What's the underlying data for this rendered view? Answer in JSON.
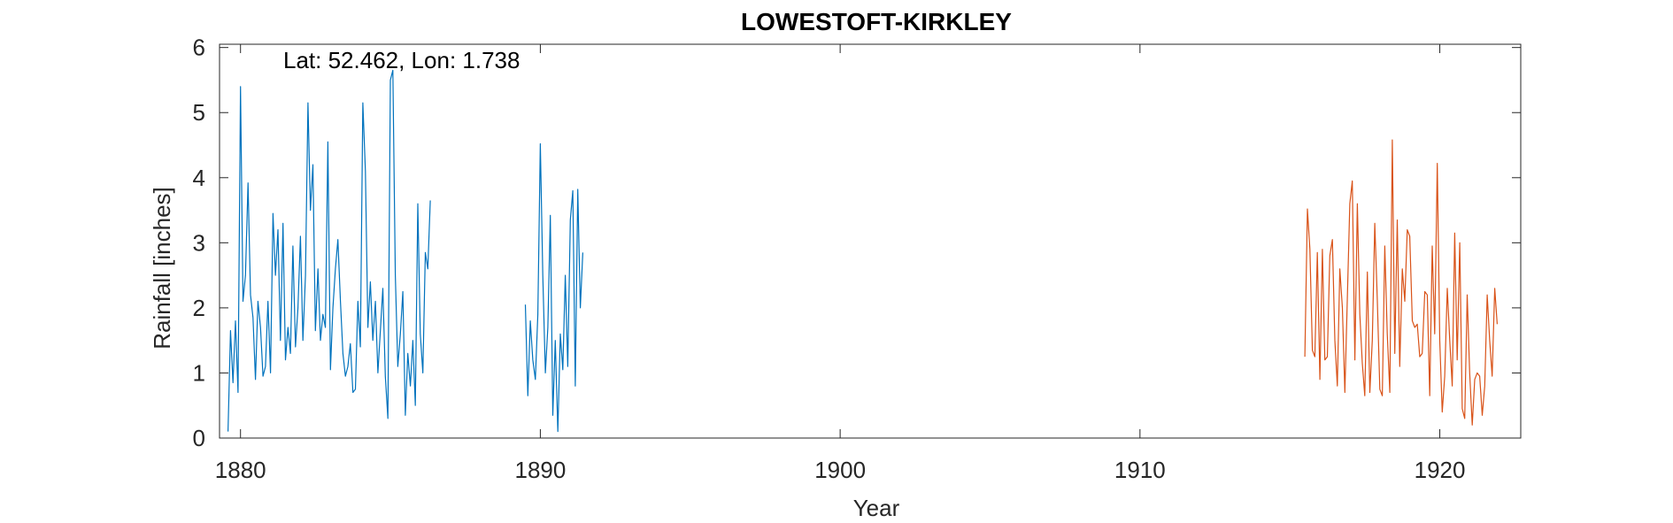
{
  "chart_data": {
    "type": "line",
    "title": "LOWESTOFT-KIRKLEY",
    "annotation": "Lat: 52.462, Lon: 1.738",
    "xlabel": "Year",
    "ylabel": "Rainfall [inches]",
    "xlim": [
      1879.3,
      1922.7
    ],
    "ylim": [
      0,
      6.05
    ],
    "xticks": [
      1880,
      1890,
      1900,
      1910,
      1920
    ],
    "yticks": [
      0,
      1,
      2,
      3,
      4,
      5,
      6
    ],
    "grid": false,
    "series": [
      {
        "color": "#0072BD",
        "segments": [
          {
            "start": 1879.583,
            "step": 0.0833,
            "values": [
              0.1,
              1.65,
              0.85,
              1.8,
              0.7,
              5.4,
              2.1,
              2.5,
              3.92,
              2.2,
              1.85,
              0.9,
              2.1,
              1.7,
              0.95,
              1.1,
              2.1,
              1.0,
              3.45,
              2.5,
              3.2,
              1.5,
              3.3,
              1.2,
              1.7,
              1.3,
              2.95,
              1.4,
              2.0,
              3.1,
              1.5,
              2.5,
              5.15,
              3.5,
              4.2,
              1.65,
              2.6,
              1.5,
              1.9,
              1.7,
              4.55,
              1.05,
              2.0,
              2.6,
              3.05,
              2.1,
              1.3,
              0.95,
              1.1,
              1.45,
              0.7,
              0.75,
              2.1,
              1.4,
              5.15,
              4.1,
              1.7,
              2.4,
              1.5,
              2.1,
              1.0,
              1.65,
              2.3,
              0.95,
              0.3,
              5.5,
              5.65,
              2.5,
              1.1,
              1.6,
              2.25,
              0.35,
              1.3,
              0.8,
              1.5,
              0.5,
              3.6,
              1.6,
              1.0,
              2.85,
              2.6,
              3.65
            ]
          },
          {
            "start": 1889.5,
            "step": 0.0833,
            "values": [
              2.05,
              0.65,
              1.8,
              1.2,
              0.9,
              1.9,
              4.52,
              2.5,
              1.0,
              1.7,
              3.42,
              0.35,
              1.5,
              0.1,
              1.6,
              1.05,
              2.5,
              1.1,
              3.35,
              3.8,
              0.8,
              3.82,
              2.0,
              2.85
            ]
          }
        ]
      },
      {
        "color": "#D95319",
        "segments": [
          {
            "start": 1915.5,
            "step": 0.0833,
            "values": [
              1.25,
              3.52,
              2.9,
              1.35,
              1.25,
              2.85,
              0.9,
              2.9,
              1.2,
              1.25,
              2.8,
              3.05,
              1.5,
              0.8,
              2.6,
              2.0,
              0.7,
              2.15,
              3.6,
              3.95,
              1.2,
              3.6,
              1.9,
              1.15,
              0.65,
              2.55,
              0.7,
              1.5,
              3.3,
              2.1,
              0.75,
              0.65,
              2.95,
              1.6,
              0.7,
              4.58,
              1.3,
              3.35,
              1.1,
              2.6,
              2.1,
              3.2,
              3.1,
              1.8,
              1.7,
              1.75,
              1.25,
              1.3,
              2.25,
              2.2,
              0.65,
              2.95,
              1.6,
              4.22,
              1.5,
              0.4,
              0.95,
              2.3,
              1.5,
              0.8,
              3.15,
              1.2,
              3.0,
              0.45,
              0.3,
              2.2,
              1.0,
              0.2,
              0.9,
              1.0,
              0.95,
              0.35,
              0.8,
              2.2,
              1.5,
              0.95,
              2.3,
              1.75
            ]
          }
        ]
      }
    ]
  }
}
